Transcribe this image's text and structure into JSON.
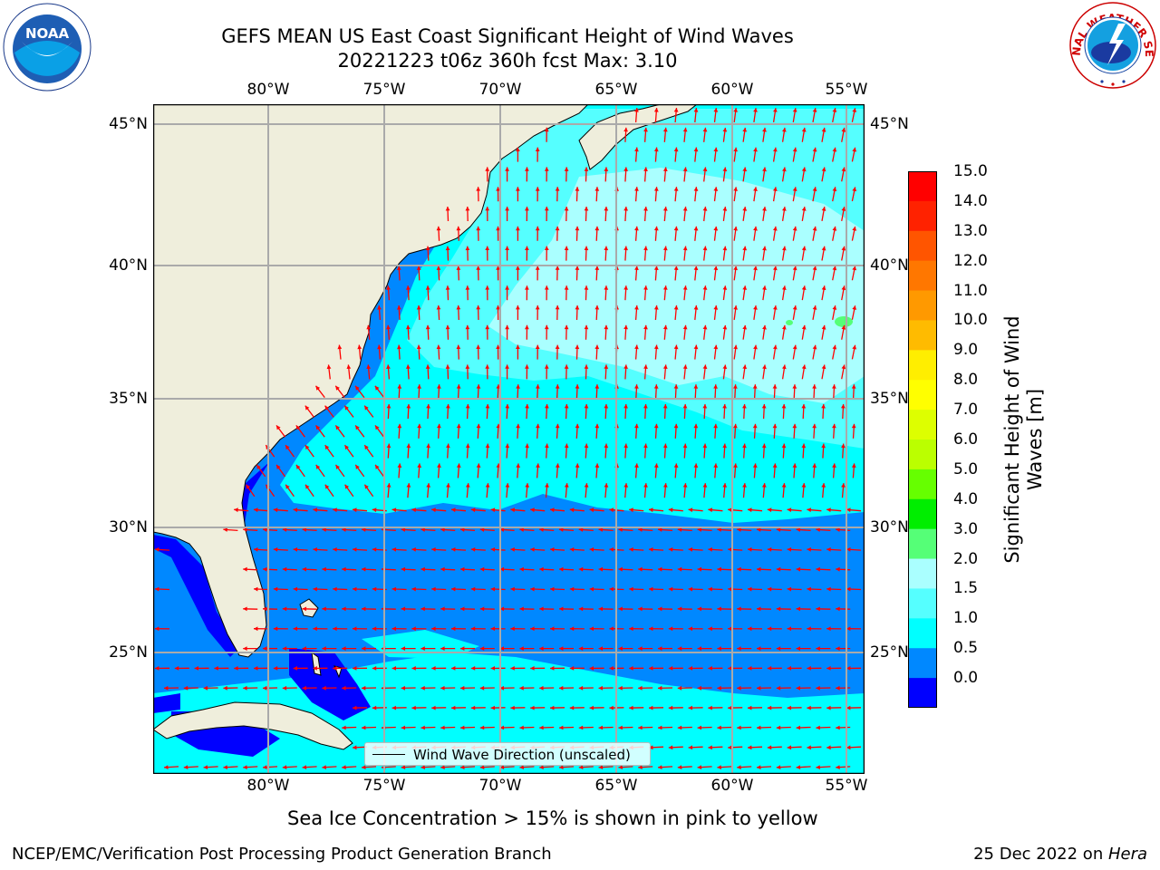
{
  "title_line1": "GEFS MEAN US East Coast Significant Height of Wind Waves",
  "title_line2": "20221223 t06z 360h fcst   Max: 3.10",
  "lon_ticks": [
    "80°W",
    "75°W",
    "70°W",
    "65°W",
    "60°W",
    "55°W"
  ],
  "lat_ticks": [
    "45°N",
    "40°N",
    "35°N",
    "30°N",
    "25°N"
  ],
  "colorbar": {
    "label": "Significant Height of Wind Waves [m]",
    "label_line1": "Significant Height of Wind",
    "label_line2": "Waves [m]",
    "ticks": [
      "15.0",
      "14.0",
      "13.0",
      "12.0",
      "11.0",
      "10.0",
      "9.0",
      "8.0",
      "7.0",
      "6.0",
      "5.0",
      "4.0",
      "3.0",
      "2.0",
      "1.5",
      "1.0",
      "0.5",
      "0.0"
    ],
    "colors": [
      "#ff0000",
      "#ff2200",
      "#ff5500",
      "#ff7700",
      "#ff9900",
      "#ffbb00",
      "#ffee00",
      "#ffff00",
      "#ddff00",
      "#bbff00",
      "#66ff00",
      "#00ee00",
      "#55ff77",
      "#aaffff",
      "#55ffff",
      "#00ffff",
      "#0088ff",
      "#0000ff"
    ]
  },
  "legend_text": "Wind Wave Direction (unscaled)",
  "ice_note": "Sea Ice Concentration > 15% is shown in pink to yellow",
  "footer_left": "NCEP/EMC/Verification Post Processing Product Generation Branch",
  "footer_date": "25 Dec 2022 on ",
  "footer_machine": "Hera",
  "logos": {
    "left_icon": "noaa-logo",
    "left_text": "NOAA",
    "right_icon": "nws-logo",
    "right_text": "NATIONAL WEATHER SERVICE"
  },
  "map_colors": {
    "land": "#efeedc",
    "sea_0_5": "#0000ff",
    "sea_0_5_1_0": "#0088ff",
    "sea_1_0_1_5": "#00ffff",
    "sea_1_5_2_0": "#55ffff",
    "sea_2_0_3_0": "#aaffff",
    "sea_3_0_4_0": "#55ff77",
    "arrow": "#ff0000",
    "grid": "#aaaaaa"
  }
}
